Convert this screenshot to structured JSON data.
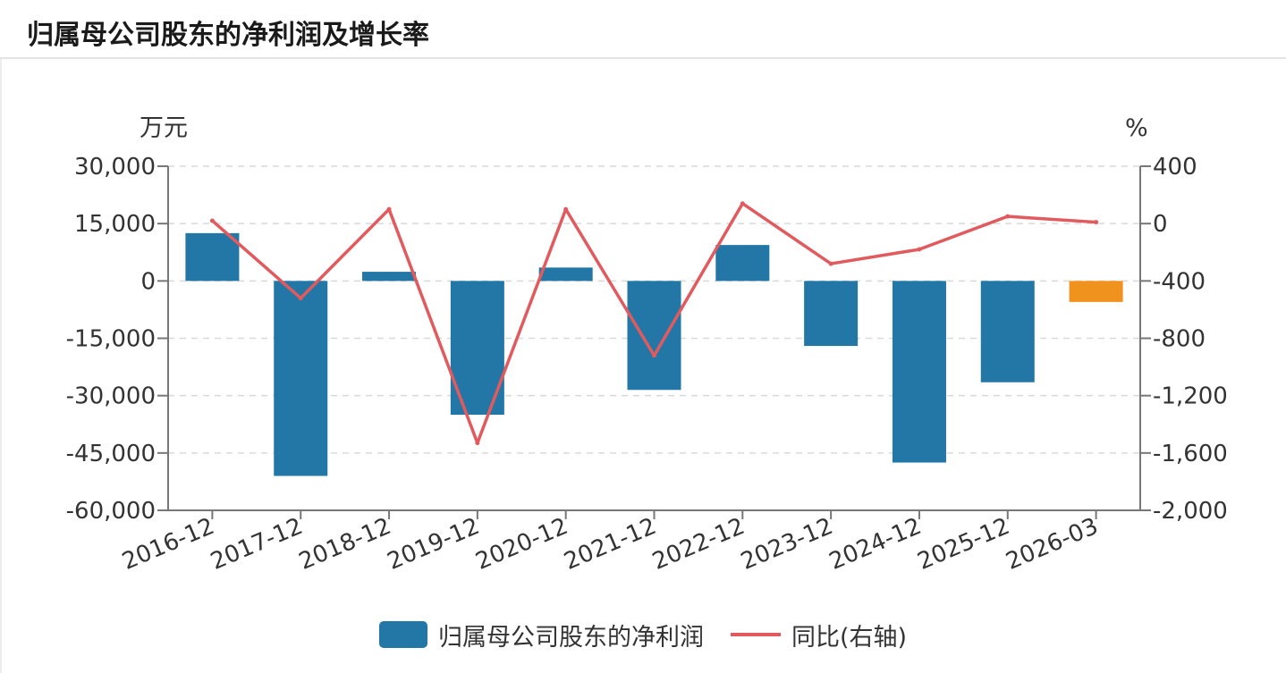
{
  "header": {
    "title": "归属母公司股东的净利润及增长率"
  },
  "legend": {
    "bar_label": "归属母公司股东的净利润",
    "line_label": "同比(右轴)"
  },
  "colors": {
    "bar": "#2377a6",
    "bar_highlight": "#f0921e",
    "line": "#e05a5e"
  },
  "chart_data": {
    "type": "bar",
    "categories": [
      "2016-12",
      "2017-12",
      "2018-12",
      "2019-12",
      "2020-12",
      "2021-12",
      "2022-12",
      "2023-12",
      "2024-12",
      "2025-12",
      "2026-03"
    ],
    "y_left_unit": "万元",
    "y_right_unit": "%",
    "y_left_range": [
      -60000,
      30000
    ],
    "y_left_ticks": [
      30000,
      15000,
      0,
      -15000,
      -30000,
      -45000,
      -60000
    ],
    "y_left_tick_labels": [
      "30,000",
      "15,000",
      "0",
      "-15,000",
      "-30,000",
      "-45,000",
      "-60,000"
    ],
    "y_right_range": [
      -2000,
      400
    ],
    "y_right_ticks": [
      400,
      0,
      -400,
      -800,
      -1200,
      -1600,
      -2000
    ],
    "y_right_tick_labels": [
      "400",
      "0",
      "-400",
      "-800",
      "-1,200",
      "-1,600",
      "-2,000"
    ],
    "grid": true,
    "series": [
      {
        "name": "归属母公司股东的净利润",
        "type": "bar",
        "axis": "left",
        "values": [
          12500,
          -51000,
          2400,
          -35000,
          3500,
          -28500,
          9400,
          -17000,
          -47500,
          -26500,
          -5500
        ]
      },
      {
        "name": "同比(右轴)",
        "type": "line",
        "axis": "right",
        "values": [
          20,
          -520,
          100,
          -1530,
          100,
          -920,
          140,
          -280,
          -180,
          50,
          10
        ]
      }
    ]
  }
}
